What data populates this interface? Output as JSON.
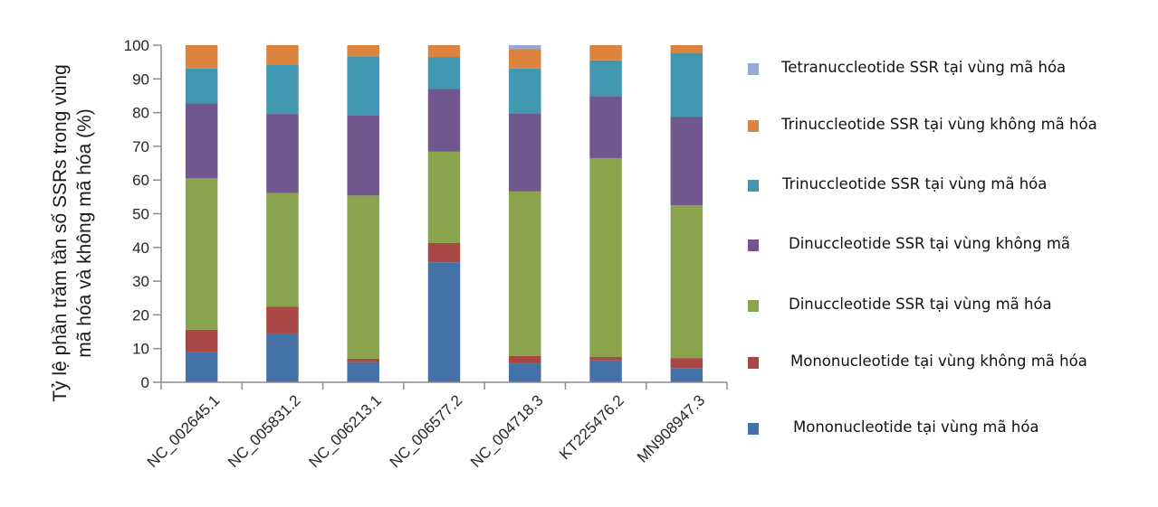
{
  "chart_data": {
    "type": "bar",
    "stacked": true,
    "title": "",
    "xlabel": "",
    "ylabel": "Tỷ lệ phần trăm tần số SSRs trong vùng mã hóa và không mã hóa (%)",
    "ylabel_lines": [
      "Tỷ lệ phần trăm tần số SSRs trong vùng",
      "mã hóa và không mã hóa (%)"
    ],
    "ylim": [
      0,
      100
    ],
    "yticks": [
      0,
      10,
      20,
      30,
      40,
      50,
      60,
      70,
      80,
      90,
      100
    ],
    "grid": false,
    "legend_position": "right",
    "categories": [
      "NC_002645.1",
      "NC_005831.2",
      "NC_006213.1",
      "NC_006577.2",
      "NC_004718.3",
      "KT225476.2",
      "MN908947.3"
    ],
    "series": [
      {
        "name": "Mononucleotide tại vùng mã hóa",
        "color": "#4472a8",
        "values": [
          9.1,
          14.5,
          6.0,
          35.6,
          5.6,
          6.5,
          4.1
        ]
      },
      {
        "name": "Mononucleotide tại vùng không mã hóa",
        "color": "#a84744",
        "values": [
          6.5,
          7.9,
          1.0,
          5.7,
          2.2,
          1.0,
          3.1
        ]
      },
      {
        "name": "Dinuccleotide SSR tại vùng mã hóa",
        "color": "#89a44d",
        "values": [
          44.9,
          33.7,
          48.4,
          27.1,
          48.8,
          59.0,
          45.3
        ]
      },
      {
        "name": "Dinuccleotide SSR tại vùng không mã",
        "color": "#70588f",
        "values": [
          22.2,
          23.5,
          23.7,
          18.6,
          23.2,
          18.4,
          26.3
        ]
      },
      {
        "name": "Trinuccleotide SSR tại vùng mã hóa",
        "color": "#4298b0",
        "values": [
          10.4,
          14.5,
          17.6,
          9.5,
          13.3,
          10.6,
          18.9
        ]
      },
      {
        "name": "Trinuccleotide SSR tại vùng không mã hóa",
        "color": "#dc843e",
        "values": [
          6.9,
          5.9,
          3.3,
          3.5,
          5.7,
          4.5,
          2.3
        ]
      },
      {
        "name": "Tetranuccleotide SSR tại vùng mã hóa",
        "color": "#93a9d2",
        "values": [
          0,
          0,
          0,
          0,
          1.2,
          0,
          0
        ]
      }
    ]
  },
  "legend": {
    "order": [
      6,
      5,
      4,
      3,
      2,
      1,
      0
    ]
  },
  "colors": {
    "axis": "#8c8c8c",
    "text": "#262626"
  }
}
